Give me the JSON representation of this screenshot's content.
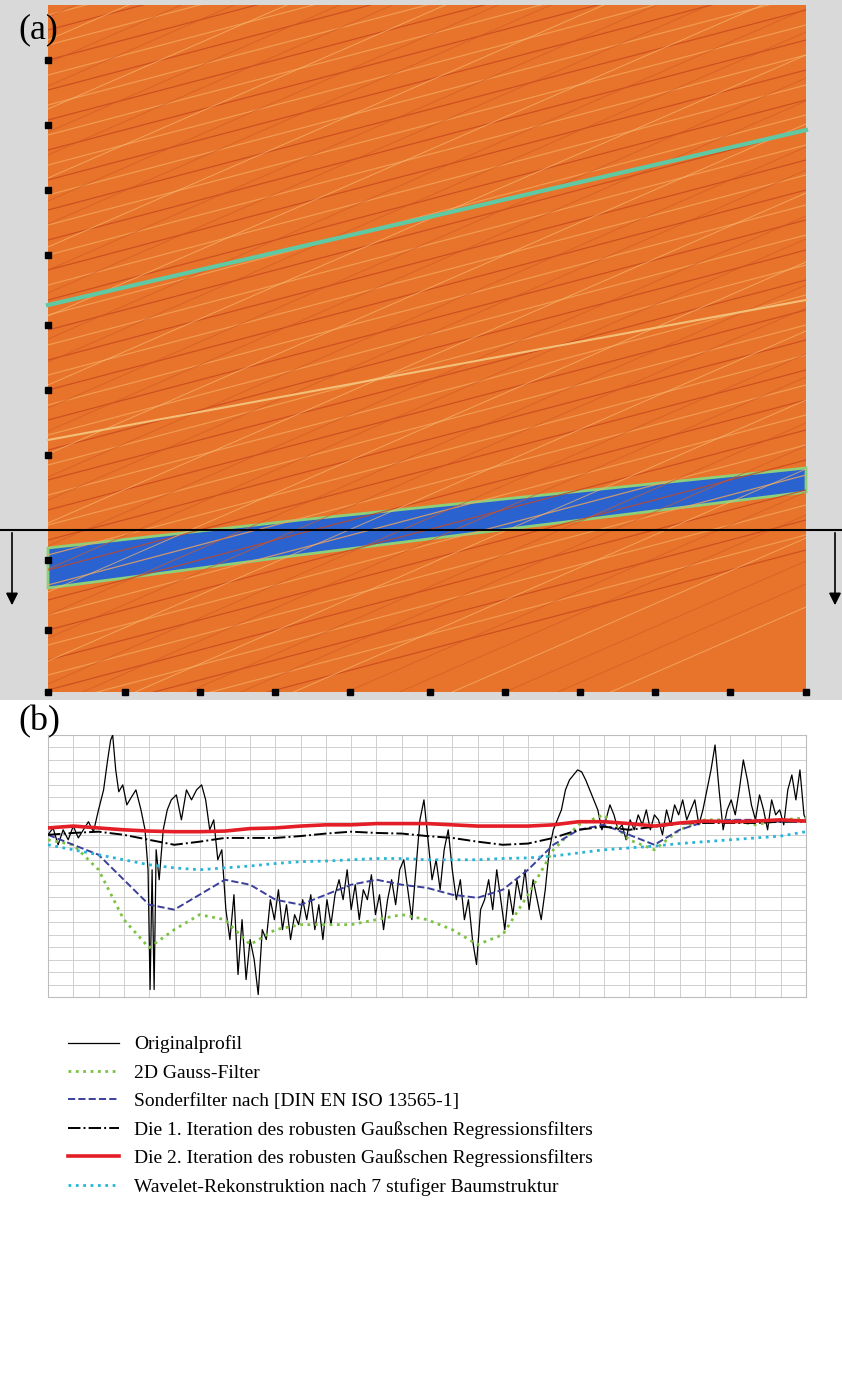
{
  "panel_a": {
    "label": "(a)"
  },
  "chart_data": {
    "type": "line",
    "label": "(b)",
    "xlim": [
      0,
      30
    ],
    "ylim": [
      -3.8,
      0.4
    ],
    "xticks": [
      0,
      1,
      2,
      3,
      4,
      5,
      6,
      7,
      8,
      9,
      10,
      11,
      12,
      13,
      14,
      15,
      16,
      17,
      18,
      19,
      20,
      21,
      22,
      23,
      24,
      25,
      26,
      27,
      28,
      29,
      30
    ],
    "yticks": [
      -3.8,
      -3.6,
      -3.4,
      -3.2,
      -3.0,
      -2.8,
      -2.6,
      -2.4,
      -2.2,
      -2.0,
      -1.8,
      -1.6,
      -1.4,
      -1.2,
      -1.0,
      -0.8,
      -0.6,
      -0.4,
      -0.2,
      0.0,
      0.2,
      0.4
    ],
    "grid": true,
    "tick_labels": false,
    "legend": "upper left",
    "series": [
      {
        "name": "Originalprofil",
        "color": "#000000",
        "line_style": "solid",
        "x": [
          0,
          0.2,
          0.4,
          0.6,
          0.8,
          1.0,
          1.2,
          1.4,
          1.6,
          1.8,
          2.0,
          2.2,
          2.36,
          2.48,
          2.56,
          2.68,
          2.8,
          2.96,
          3.12,
          3.28,
          3.48,
          3.68,
          3.84,
          3.96,
          4.04,
          4.12,
          4.2,
          4.28,
          4.4,
          4.56,
          4.72,
          4.88,
          5.08,
          5.28,
          5.48,
          5.68,
          5.88,
          6.08,
          6.24,
          6.4,
          6.56,
          6.72,
          6.88,
          7.04,
          7.2,
          7.36,
          7.52,
          7.68,
          7.84,
          8.0,
          8.16,
          8.32,
          8.48,
          8.64,
          8.8,
          8.96,
          9.12,
          9.28,
          9.44,
          9.6,
          9.76,
          9.92,
          10.08,
          10.24,
          10.4,
          10.56,
          10.72,
          10.88,
          11.04,
          11.2,
          11.36,
          11.52,
          11.68,
          11.84,
          12.0,
          12.16,
          12.32,
          12.48,
          12.64,
          12.8,
          12.96,
          13.12,
          13.28,
          13.44,
          13.6,
          13.76,
          13.92,
          14.08,
          14.24,
          14.4,
          14.56,
          14.72,
          14.88,
          15.04,
          15.2,
          15.36,
          15.52,
          15.68,
          15.84,
          16.0,
          16.16,
          16.32,
          16.48,
          16.64,
          16.8,
          16.96,
          17.12,
          17.28,
          17.44,
          17.6,
          17.76,
          17.92,
          18.08,
          18.24,
          18.4,
          18.56,
          18.72,
          18.88,
          19.04,
          19.2,
          19.36,
          19.52,
          19.68,
          19.84,
          20.0,
          20.16,
          20.32,
          20.48,
          20.64,
          20.8,
          20.96,
          21.12,
          21.28,
          21.44,
          21.6,
          21.76,
          21.92,
          22.08,
          22.24,
          22.4,
          22.56,
          22.72,
          22.88,
          23.04,
          23.2,
          23.36,
          23.52,
          23.68,
          23.84,
          24.0,
          24.16,
          24.32,
          24.48,
          24.64,
          24.8,
          24.96,
          25.12,
          25.28,
          25.44,
          25.6,
          25.76,
          25.92,
          26.08,
          26.24,
          26.4,
          26.56,
          26.72,
          26.88,
          27.04,
          27.2,
          27.36,
          27.52,
          27.68,
          27.84,
          28.0,
          28.16,
          28.32,
          28.48,
          28.64,
          28.8,
          28.96,
          29.12,
          29.28,
          29.44,
          29.6,
          29.76,
          29.92,
          30.0
        ],
        "values": [
          -1.2,
          -1.09,
          -1.36,
          -1.12,
          -1.28,
          -1.06,
          -1.25,
          -1.12,
          -0.99,
          -1.15,
          -0.8,
          -0.48,
          0.0,
          0.32,
          0.4,
          -0.16,
          -0.51,
          -0.4,
          -0.72,
          -0.61,
          -0.48,
          -0.8,
          -1.12,
          -1.76,
          -3.68,
          -1.76,
          -3.68,
          -1.44,
          -1.92,
          -1.12,
          -0.8,
          -0.64,
          -0.56,
          -0.96,
          -0.48,
          -0.64,
          -0.48,
          -0.4,
          -0.64,
          -1.12,
          -0.96,
          -1.6,
          -1.44,
          -2.4,
          -2.88,
          -2.16,
          -3.44,
          -2.56,
          -3.52,
          -2.88,
          -3.2,
          -3.76,
          -2.72,
          -2.88,
          -2.24,
          -2.56,
          -2.08,
          -2.72,
          -2.32,
          -2.88,
          -2.48,
          -2.64,
          -2.24,
          -2.56,
          -2.16,
          -2.72,
          -2.32,
          -2.88,
          -2.24,
          -2.64,
          -2.16,
          -1.92,
          -2.24,
          -1.76,
          -2.4,
          -2.0,
          -2.56,
          -2.08,
          -2.24,
          -1.84,
          -2.48,
          -2.16,
          -2.72,
          -2.24,
          -1.92,
          -2.32,
          -1.76,
          -1.6,
          -2.08,
          -2.56,
          -1.76,
          -0.96,
          -0.64,
          -1.28,
          -1.92,
          -1.6,
          -2.08,
          -1.44,
          -1.12,
          -1.76,
          -2.24,
          -1.92,
          -2.56,
          -2.24,
          -2.88,
          -3.28,
          -2.4,
          -2.24,
          -1.92,
          -2.4,
          -1.76,
          -2.24,
          -2.72,
          -2.08,
          -2.48,
          -1.92,
          -2.24,
          -1.76,
          -2.4,
          -1.92,
          -2.24,
          -2.56,
          -2.08,
          -1.44,
          -1.12,
          -0.96,
          -0.8,
          -0.48,
          -0.32,
          -0.24,
          -0.16,
          -0.19,
          -0.32,
          -0.48,
          -0.64,
          -0.8,
          -1.12,
          -0.96,
          -0.72,
          -0.88,
          -1.12,
          -1.04,
          -1.28,
          -0.96,
          -1.12,
          -0.88,
          -1.04,
          -0.8,
          -1.12,
          -0.88,
          -0.96,
          -1.2,
          -0.8,
          -1.04,
          -0.72,
          -0.88,
          -0.64,
          -0.96,
          -0.8,
          -0.64,
          -1.04,
          -0.8,
          -0.48,
          -0.16,
          0.24,
          -0.48,
          -1.12,
          -0.8,
          -0.64,
          -0.88,
          -0.48,
          0.0,
          -0.32,
          -0.72,
          -0.96,
          -0.56,
          -0.8,
          -1.12,
          -0.64,
          -0.88,
          -0.8,
          -1.04,
          -0.48,
          -0.24,
          -0.64,
          -0.16,
          -0.88,
          -0.96
        ]
      },
      {
        "name": "2D Gauss-Filter",
        "color": "#7cc242",
        "line_style": "dotted",
        "x": [
          0,
          1,
          2,
          3,
          4,
          5,
          6,
          7,
          8,
          9,
          10,
          11,
          12,
          13,
          14,
          15,
          16,
          17,
          18,
          19,
          20,
          21,
          22,
          23,
          24,
          25,
          26,
          27,
          28,
          29,
          30
        ],
        "values": [
          -1.28,
          -1.36,
          -1.76,
          -2.56,
          -3.01,
          -2.72,
          -2.48,
          -2.56,
          -2.96,
          -2.72,
          -2.64,
          -2.64,
          -2.64,
          -2.56,
          -2.48,
          -2.56,
          -2.72,
          -2.96,
          -2.8,
          -2.16,
          -1.44,
          -1.04,
          -0.88,
          -1.28,
          -1.44,
          -1.12,
          -0.96,
          -0.96,
          -1.04,
          -0.96,
          -0.93
        ]
      },
      {
        "name": "Sonderfilter nach [DIN EN ISO 13565-1]",
        "color": "#3b3f9a",
        "line_style": "dashed",
        "x": [
          0,
          1,
          2,
          3,
          4,
          5,
          6,
          7,
          8,
          9,
          10,
          11,
          12,
          13,
          14,
          15,
          16,
          17,
          18,
          19,
          20,
          21,
          22,
          23,
          24,
          25,
          26,
          27,
          28,
          29,
          30
        ],
        "values": [
          -1.2,
          -1.36,
          -1.52,
          -1.92,
          -2.32,
          -2.4,
          -2.16,
          -1.92,
          -2.0,
          -2.24,
          -2.32,
          -2.16,
          -2.0,
          -1.92,
          -2.0,
          -2.05,
          -2.16,
          -2.21,
          -2.08,
          -1.76,
          -1.36,
          -1.12,
          -1.04,
          -1.2,
          -1.36,
          -1.12,
          -0.99,
          -0.96,
          -0.96,
          -0.99,
          -0.96
        ]
      },
      {
        "name": "Die 1. Iteration des robusten Gaußschen Regressionsfilters",
        "color": "#000000",
        "line_style": "dashdot",
        "x": [
          0,
          1,
          2,
          3,
          4,
          5,
          6,
          7,
          8,
          9,
          10,
          11,
          12,
          13,
          14,
          15,
          16,
          17,
          18,
          19,
          20,
          21,
          22,
          23,
          24,
          25,
          26,
          27,
          28,
          29,
          30
        ],
        "values": [
          -1.2,
          -1.17,
          -1.15,
          -1.2,
          -1.28,
          -1.36,
          -1.31,
          -1.25,
          -1.25,
          -1.25,
          -1.22,
          -1.18,
          -1.15,
          -1.17,
          -1.18,
          -1.22,
          -1.25,
          -1.31,
          -1.36,
          -1.34,
          -1.25,
          -1.12,
          -1.07,
          -1.12,
          -1.07,
          -1.02,
          -1.01,
          -1.01,
          -1.01,
          -0.99,
          -0.99
        ]
      },
      {
        "name": "Die 2. Iteration des robusten Gaußschen Regressionsfilters",
        "color": "#e41e26",
        "line_style": "solid",
        "x": [
          0,
          1,
          2,
          3,
          4,
          5,
          6,
          7,
          8,
          9,
          10,
          11,
          12,
          13,
          14,
          15,
          16,
          17,
          18,
          19,
          20,
          21,
          22,
          23,
          24,
          25,
          26,
          27,
          28,
          29,
          30
        ],
        "values": [
          -1.09,
          -1.06,
          -1.09,
          -1.12,
          -1.14,
          -1.15,
          -1.15,
          -1.14,
          -1.1,
          -1.09,
          -1.06,
          -1.04,
          -1.04,
          -1.02,
          -1.02,
          -1.02,
          -1.04,
          -1.06,
          -1.06,
          -1.06,
          -1.04,
          -0.99,
          -0.99,
          -1.02,
          -1.06,
          -1.01,
          -0.98,
          -0.99,
          -0.98,
          -0.96,
          -0.98
        ]
      },
      {
        "name": "Wavelet-Rekonstruktion nach 7 stufiger Baumstruktur",
        "color": "#27b5d8",
        "line_style": "dotted",
        "x": [
          0,
          1,
          2,
          3,
          4,
          5,
          6,
          7,
          8,
          9,
          10,
          11,
          12,
          13,
          14,
          15,
          16,
          17,
          18,
          19,
          20,
          21,
          22,
          23,
          24,
          25,
          26,
          27,
          28,
          29,
          30
        ],
        "values": [
          -1.36,
          -1.44,
          -1.52,
          -1.6,
          -1.68,
          -1.73,
          -1.76,
          -1.73,
          -1.7,
          -1.66,
          -1.63,
          -1.62,
          -1.6,
          -1.58,
          -1.58,
          -1.6,
          -1.6,
          -1.6,
          -1.58,
          -1.57,
          -1.54,
          -1.49,
          -1.44,
          -1.41,
          -1.38,
          -1.34,
          -1.31,
          -1.28,
          -1.25,
          -1.22,
          -1.15
        ]
      }
    ]
  }
}
